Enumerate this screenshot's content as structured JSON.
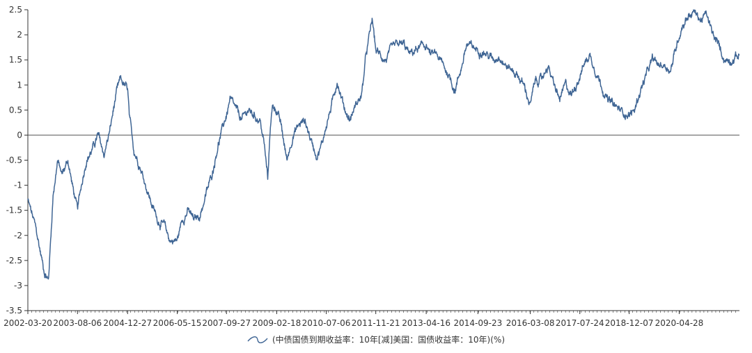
{
  "chart_data": {
    "type": "line",
    "title": "",
    "xlabel": "",
    "ylabel": "",
    "ylim": [
      -3.5,
      2.5
    ],
    "y_ticks": [
      2.5,
      2,
      1.5,
      1,
      0.5,
      0,
      -0.5,
      -1,
      -1.5,
      -2,
      -2.5,
      -3,
      -3.5
    ],
    "y_tick_labels": [
      "2.5",
      "2",
      "1.5",
      "1",
      "0.5",
      "0",
      "-0.5",
      "-1",
      "-1.5",
      "-2",
      "-2.5",
      "-3",
      "-3.5"
    ],
    "x_range": [
      "2002-03-20",
      "2021-12-31"
    ],
    "x_tick_labels": [
      "2002-03-20",
      "2003-08-06",
      "2004-12-27",
      "2006-05-15",
      "2007-09-27",
      "2009-02-18",
      "2010-07-06",
      "2011-11-21",
      "2013-04-16",
      "2014-09-23",
      "2016-03-08",
      "2017-07-24",
      "2018-12-07",
      "2020-04-28"
    ],
    "grid": false,
    "zero_line": true,
    "legend_position": "bottom",
    "series": [
      {
        "name": "(中债国债到期收益率：10年[减]美国：国债收益率：10年)(%)",
        "color": "#3f6594",
        "x": [
          "2002-03-20",
          "2002-06-01",
          "2002-09-01",
          "2002-10-15",
          "2002-12-01",
          "2003-01-15",
          "2003-03-01",
          "2003-05-01",
          "2003-06-15",
          "2003-08-06",
          "2003-09-15",
          "2003-11-01",
          "2004-01-01",
          "2004-03-01",
          "2004-05-01",
          "2004-07-01",
          "2004-09-01",
          "2004-10-15",
          "2004-12-27",
          "2005-01-15",
          "2005-03-01",
          "2005-05-01",
          "2005-07-01",
          "2005-09-01",
          "2005-11-01",
          "2006-01-01",
          "2006-03-01",
          "2006-05-15",
          "2006-07-01",
          "2006-09-01",
          "2006-11-01",
          "2007-01-01",
          "2007-03-01",
          "2007-05-01",
          "2007-07-01",
          "2007-09-27",
          "2007-11-01",
          "2008-01-01",
          "2008-03-01",
          "2008-05-01",
          "2008-07-01",
          "2008-09-01",
          "2008-10-15",
          "2008-11-20",
          "2008-12-15",
          "2009-01-10",
          "2009-02-18",
          "2009-04-01",
          "2009-06-01",
          "2009-08-01",
          "2009-10-01",
          "2009-12-01",
          "2010-02-01",
          "2010-04-01",
          "2010-05-20",
          "2010-07-06",
          "2010-09-01",
          "2010-10-25",
          "2010-12-01",
          "2011-01-15",
          "2011-03-01",
          "2011-05-01",
          "2011-07-01",
          "2011-08-15",
          "2011-09-20",
          "2011-10-15",
          "2011-11-21",
          "2012-01-01",
          "2012-03-01",
          "2012-05-01",
          "2012-07-01",
          "2012-09-01",
          "2012-11-01",
          "2013-01-01",
          "2013-04-16",
          "2013-06-01",
          "2013-08-01",
          "2013-10-01",
          "2013-12-01",
          "2014-02-01",
          "2014-04-01",
          "2014-06-01",
          "2014-09-23",
          "2014-11-01",
          "2015-01-01",
          "2015-03-01",
          "2015-05-01",
          "2015-07-01",
          "2015-09-01",
          "2015-11-01",
          "2016-01-01",
          "2016-03-08",
          "2016-05-01",
          "2016-07-01",
          "2016-09-01",
          "2016-11-01",
          "2017-01-01",
          "2017-03-01",
          "2017-05-01",
          "2017-07-24",
          "2017-09-01",
          "2017-11-01",
          "2018-01-01",
          "2018-03-01",
          "2018-05-01",
          "2018-07-01",
          "2018-09-01",
          "2018-12-07",
          "2019-02-01",
          "2019-04-01",
          "2019-06-01",
          "2019-08-01",
          "2019-10-01",
          "2019-12-01",
          "2020-02-01",
          "2020-04-28",
          "2020-06-01",
          "2020-08-01",
          "2020-10-01",
          "2020-12-01",
          "2021-02-01",
          "2021-04-01",
          "2021-06-01",
          "2021-08-01",
          "2021-10-01",
          "2021-12-31"
        ],
        "values": [
          -1.3,
          -1.8,
          -2.7,
          -2.9,
          -1.2,
          -0.5,
          -0.8,
          -0.5,
          -1.0,
          -1.5,
          -1.0,
          -0.5,
          -0.3,
          0.0,
          -0.4,
          0.1,
          0.8,
          1.1,
          0.9,
          0.3,
          -0.3,
          -0.6,
          -1.0,
          -1.4,
          -1.7,
          -1.8,
          -2.1,
          -2.1,
          -1.7,
          -1.5,
          -1.7,
          -1.6,
          -1.2,
          -0.8,
          -0.2,
          0.4,
          0.7,
          0.5,
          0.3,
          0.5,
          0.4,
          0.3,
          -0.2,
          -0.9,
          0.2,
          0.6,
          0.5,
          0.2,
          -0.5,
          0.0,
          0.2,
          0.3,
          -0.1,
          -0.4,
          -0.2,
          0.2,
          0.6,
          1.1,
          0.8,
          0.5,
          0.3,
          0.6,
          0.8,
          1.6,
          2.0,
          2.3,
          1.7,
          1.6,
          1.5,
          1.7,
          1.8,
          1.8,
          1.6,
          1.7,
          1.8,
          1.6,
          1.6,
          1.4,
          1.2,
          0.9,
          1.3,
          1.8,
          1.7,
          1.7,
          1.6,
          1.5,
          1.6,
          1.4,
          1.3,
          1.2,
          1.0,
          0.6,
          1.1,
          1.1,
          1.4,
          1.0,
          0.7,
          1.0,
          0.8,
          1.2,
          1.4,
          1.6,
          1.3,
          1.0,
          0.7,
          0.6,
          0.5,
          0.4,
          0.5,
          0.9,
          1.2,
          1.5,
          1.4,
          1.4,
          1.3,
          2.0,
          2.2,
          2.4,
          2.45,
          2.3,
          2.4,
          2.0,
          1.8,
          1.5,
          1.5,
          1.6
        ]
      }
    ]
  }
}
